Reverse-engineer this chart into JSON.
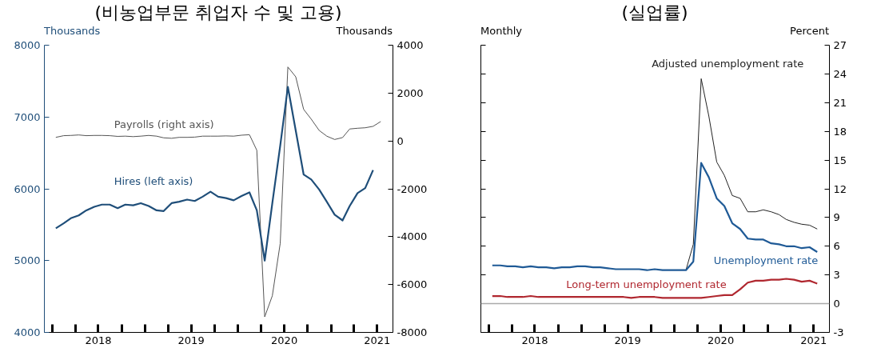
{
  "chart_data": [
    {
      "type": "line",
      "title": "(비농업부문 취업자 수 및 고용)",
      "ylabel": "Thousands",
      "y2label": "Thousands",
      "xlim": [
        "2017-12-01",
        "2021-09-01"
      ],
      "xticks": [
        {
          "value": "2018-01-01",
          "label": null
        },
        {
          "value": "2018-04-01",
          "label": null
        },
        {
          "value": "2018-07-01",
          "label": "2018"
        },
        {
          "value": "2018-10-01",
          "label": null
        },
        {
          "value": "2019-01-01",
          "label": null
        },
        {
          "value": "2019-04-01",
          "label": null
        },
        {
          "value": "2019-07-01",
          "label": "2019"
        },
        {
          "value": "2019-10-01",
          "label": null
        },
        {
          "value": "2020-01-01",
          "label": null
        },
        {
          "value": "2020-04-01",
          "label": null
        },
        {
          "value": "2020-07-01",
          "label": "2020"
        },
        {
          "value": "2020-10-01",
          "label": null
        },
        {
          "value": "2021-01-01",
          "label": null
        },
        {
          "value": "2021-04-01",
          "label": null
        },
        {
          "value": "2021-07-01",
          "label": "2021"
        }
      ],
      "ylim": [
        4000,
        8000
      ],
      "yticks": [
        4000,
        5000,
        6000,
        7000,
        8000
      ],
      "y2lim": [
        -8000,
        4000
      ],
      "y2ticks": [
        -8000,
        -6000,
        -4000,
        -2000,
        0,
        2000,
        4000
      ],
      "grid": false,
      "x": [
        "2018-01-15",
        "2018-02-15",
        "2018-03-15",
        "2018-04-15",
        "2018-05-15",
        "2018-06-15",
        "2018-07-15",
        "2018-08-15",
        "2018-09-15",
        "2018-10-15",
        "2018-11-15",
        "2018-12-15",
        "2019-01-15",
        "2019-02-15",
        "2019-03-15",
        "2019-04-15",
        "2019-05-15",
        "2019-06-15",
        "2019-07-15",
        "2019-08-15",
        "2019-09-15",
        "2019-10-15",
        "2019-11-15",
        "2019-12-15",
        "2020-01-15",
        "2020-02-15",
        "2020-03-15",
        "2020-04-15",
        "2020-05-15",
        "2020-06-15",
        "2020-07-15",
        "2020-08-15",
        "2020-09-15",
        "2020-10-15",
        "2020-11-15",
        "2020-12-15",
        "2021-01-15",
        "2021-02-15",
        "2021-03-15",
        "2021-04-15",
        "2021-05-15",
        "2021-06-15",
        "2021-07-15"
      ],
      "series": [
        {
          "name": "Payrolls (right axis)",
          "color": "#555555",
          "axis": "y2",
          "values": [
            150,
            220,
            230,
            250,
            220,
            230,
            230,
            220,
            190,
            200,
            180,
            200,
            230,
            200,
            130,
            110,
            150,
            150,
            160,
            200,
            200,
            200,
            210,
            200,
            240,
            260,
            -390,
            -7350,
            -6470,
            -4280,
            3090,
            2680,
            1320,
            910,
            440,
            200,
            60,
            140,
            500,
            530,
            550,
            610,
            810
          ]
        },
        {
          "name": "Hires (left axis)",
          "color": "#1f4e79",
          "x": [
            "2018-01-15",
            "2018-02-15",
            "2018-03-15",
            "2018-04-15",
            "2018-05-15",
            "2018-06-15",
            "2018-07-15",
            "2018-08-15",
            "2018-09-15",
            "2018-10-15",
            "2018-11-15",
            "2018-12-15",
            "2019-01-15",
            "2019-02-15",
            "2019-03-15",
            "2019-04-15",
            "2019-05-15",
            "2019-06-15",
            "2019-07-15",
            "2019-08-15",
            "2019-09-15",
            "2019-10-15",
            "2019-11-15",
            "2019-12-15",
            "2020-01-15",
            "2020-02-15",
            "2020-03-15",
            "2020-04-15",
            "2020-05-15",
            "2020-06-15",
            "2020-07-15",
            "2020-08-15",
            "2020-09-15",
            "2020-10-15",
            "2020-11-15",
            "2020-12-15",
            "2021-01-15",
            "2021-02-15",
            "2021-03-15",
            "2021-04-15",
            "2021-05-15",
            "2021-06-15"
          ],
          "values": [
            5450,
            5520,
            5590,
            5630,
            5700,
            5750,
            5780,
            5780,
            5730,
            5780,
            5770,
            5800,
            5760,
            5700,
            5690,
            5800,
            5820,
            5850,
            5830,
            5890,
            5960,
            5890,
            5870,
            5840,
            5900,
            5950,
            5700,
            5000,
            5800,
            6600,
            7420,
            6810,
            6200,
            6130,
            5990,
            5820,
            5640,
            5560,
            5760,
            5940,
            6010,
            6260
          ]
        }
      ]
    },
    {
      "type": "line",
      "title": "(실업률)",
      "ylabel": "Percent",
      "annotations": [
        "Monthly"
      ],
      "xlim": [
        "2017-12-01",
        "2021-09-01"
      ],
      "xticks": [
        {
          "value": "2018-01-01",
          "label": null
        },
        {
          "value": "2018-04-01",
          "label": null
        },
        {
          "value": "2018-07-01",
          "label": "2018"
        },
        {
          "value": "2018-10-01",
          "label": null
        },
        {
          "value": "2019-01-01",
          "label": null
        },
        {
          "value": "2019-04-01",
          "label": null
        },
        {
          "value": "2019-07-01",
          "label": "2019"
        },
        {
          "value": "2019-10-01",
          "label": null
        },
        {
          "value": "2020-01-01",
          "label": null
        },
        {
          "value": "2020-04-01",
          "label": null
        },
        {
          "value": "2020-07-01",
          "label": "2020"
        },
        {
          "value": "2020-10-01",
          "label": null
        },
        {
          "value": "2021-01-01",
          "label": null
        },
        {
          "value": "2021-04-01",
          "label": null
        },
        {
          "value": "2021-07-01",
          "label": "2021"
        }
      ],
      "ylim": [
        -3,
        27
      ],
      "yticks": [
        -3,
        0,
        3,
        6,
        9,
        12,
        15,
        18,
        21,
        24,
        27
      ],
      "grid": false,
      "ref_lines": [
        {
          "axis": "y",
          "value": 0,
          "color": "#aaaaaa"
        }
      ],
      "x": [
        "2018-01-15",
        "2018-02-15",
        "2018-03-15",
        "2018-04-15",
        "2018-05-15",
        "2018-06-15",
        "2018-07-15",
        "2018-08-15",
        "2018-09-15",
        "2018-10-15",
        "2018-11-15",
        "2018-12-15",
        "2019-01-15",
        "2019-02-15",
        "2019-03-15",
        "2019-04-15",
        "2019-05-15",
        "2019-06-15",
        "2019-07-15",
        "2019-08-15",
        "2019-09-15",
        "2019-10-15",
        "2019-11-15",
        "2019-12-15",
        "2020-01-15",
        "2020-02-15",
        "2020-03-15",
        "2020-04-15",
        "2020-05-15",
        "2020-06-15",
        "2020-07-15",
        "2020-08-15",
        "2020-09-15",
        "2020-10-15",
        "2020-11-15",
        "2020-12-15",
        "2021-01-15",
        "2021-02-15",
        "2021-03-15",
        "2021-04-15",
        "2021-05-15",
        "2021-06-15",
        "2021-07-15"
      ],
      "series": [
        {
          "name": "Adjusted unemployment rate",
          "color": "#222222",
          "x": [
            "2020-02-15",
            "2020-03-15",
            "2020-04-15",
            "2020-05-15",
            "2020-06-15",
            "2020-07-15",
            "2020-08-15",
            "2020-09-15",
            "2020-10-15",
            "2020-11-15",
            "2020-12-15",
            "2021-01-15",
            "2021-02-15",
            "2021-03-15",
            "2021-04-15",
            "2021-05-15",
            "2021-06-15",
            "2021-07-15"
          ],
          "values": [
            3.5,
            6.2,
            23.5,
            19.6,
            14.8,
            13.4,
            11.3,
            11.0,
            9.6,
            9.6,
            9.8,
            9.6,
            9.3,
            8.8,
            8.5,
            8.3,
            8.2,
            7.8
          ]
        },
        {
          "name": "Unemployment rate",
          "color": "#1f5a96",
          "values": [
            4.0,
            4.0,
            3.9,
            3.9,
            3.8,
            3.9,
            3.8,
            3.8,
            3.7,
            3.8,
            3.8,
            3.9,
            3.9,
            3.8,
            3.8,
            3.7,
            3.6,
            3.6,
            3.6,
            3.6,
            3.5,
            3.6,
            3.5,
            3.5,
            3.5,
            3.5,
            4.4,
            14.7,
            13.2,
            11.0,
            10.2,
            8.4,
            7.8,
            6.8,
            6.7,
            6.7,
            6.3,
            6.2,
            6.0,
            6.0,
            5.8,
            5.9,
            5.4
          ]
        },
        {
          "name": "Long-term unemployment rate",
          "color": "#b0272f",
          "values": [
            0.8,
            0.8,
            0.7,
            0.7,
            0.7,
            0.8,
            0.7,
            0.7,
            0.7,
            0.7,
            0.7,
            0.7,
            0.7,
            0.7,
            0.7,
            0.7,
            0.7,
            0.7,
            0.6,
            0.7,
            0.7,
            0.7,
            0.6,
            0.6,
            0.6,
            0.6,
            0.6,
            0.6,
            0.7,
            0.8,
            0.9,
            0.9,
            1.5,
            2.2,
            2.4,
            2.4,
            2.5,
            2.5,
            2.6,
            2.5,
            2.3,
            2.4,
            2.1
          ]
        }
      ]
    }
  ]
}
